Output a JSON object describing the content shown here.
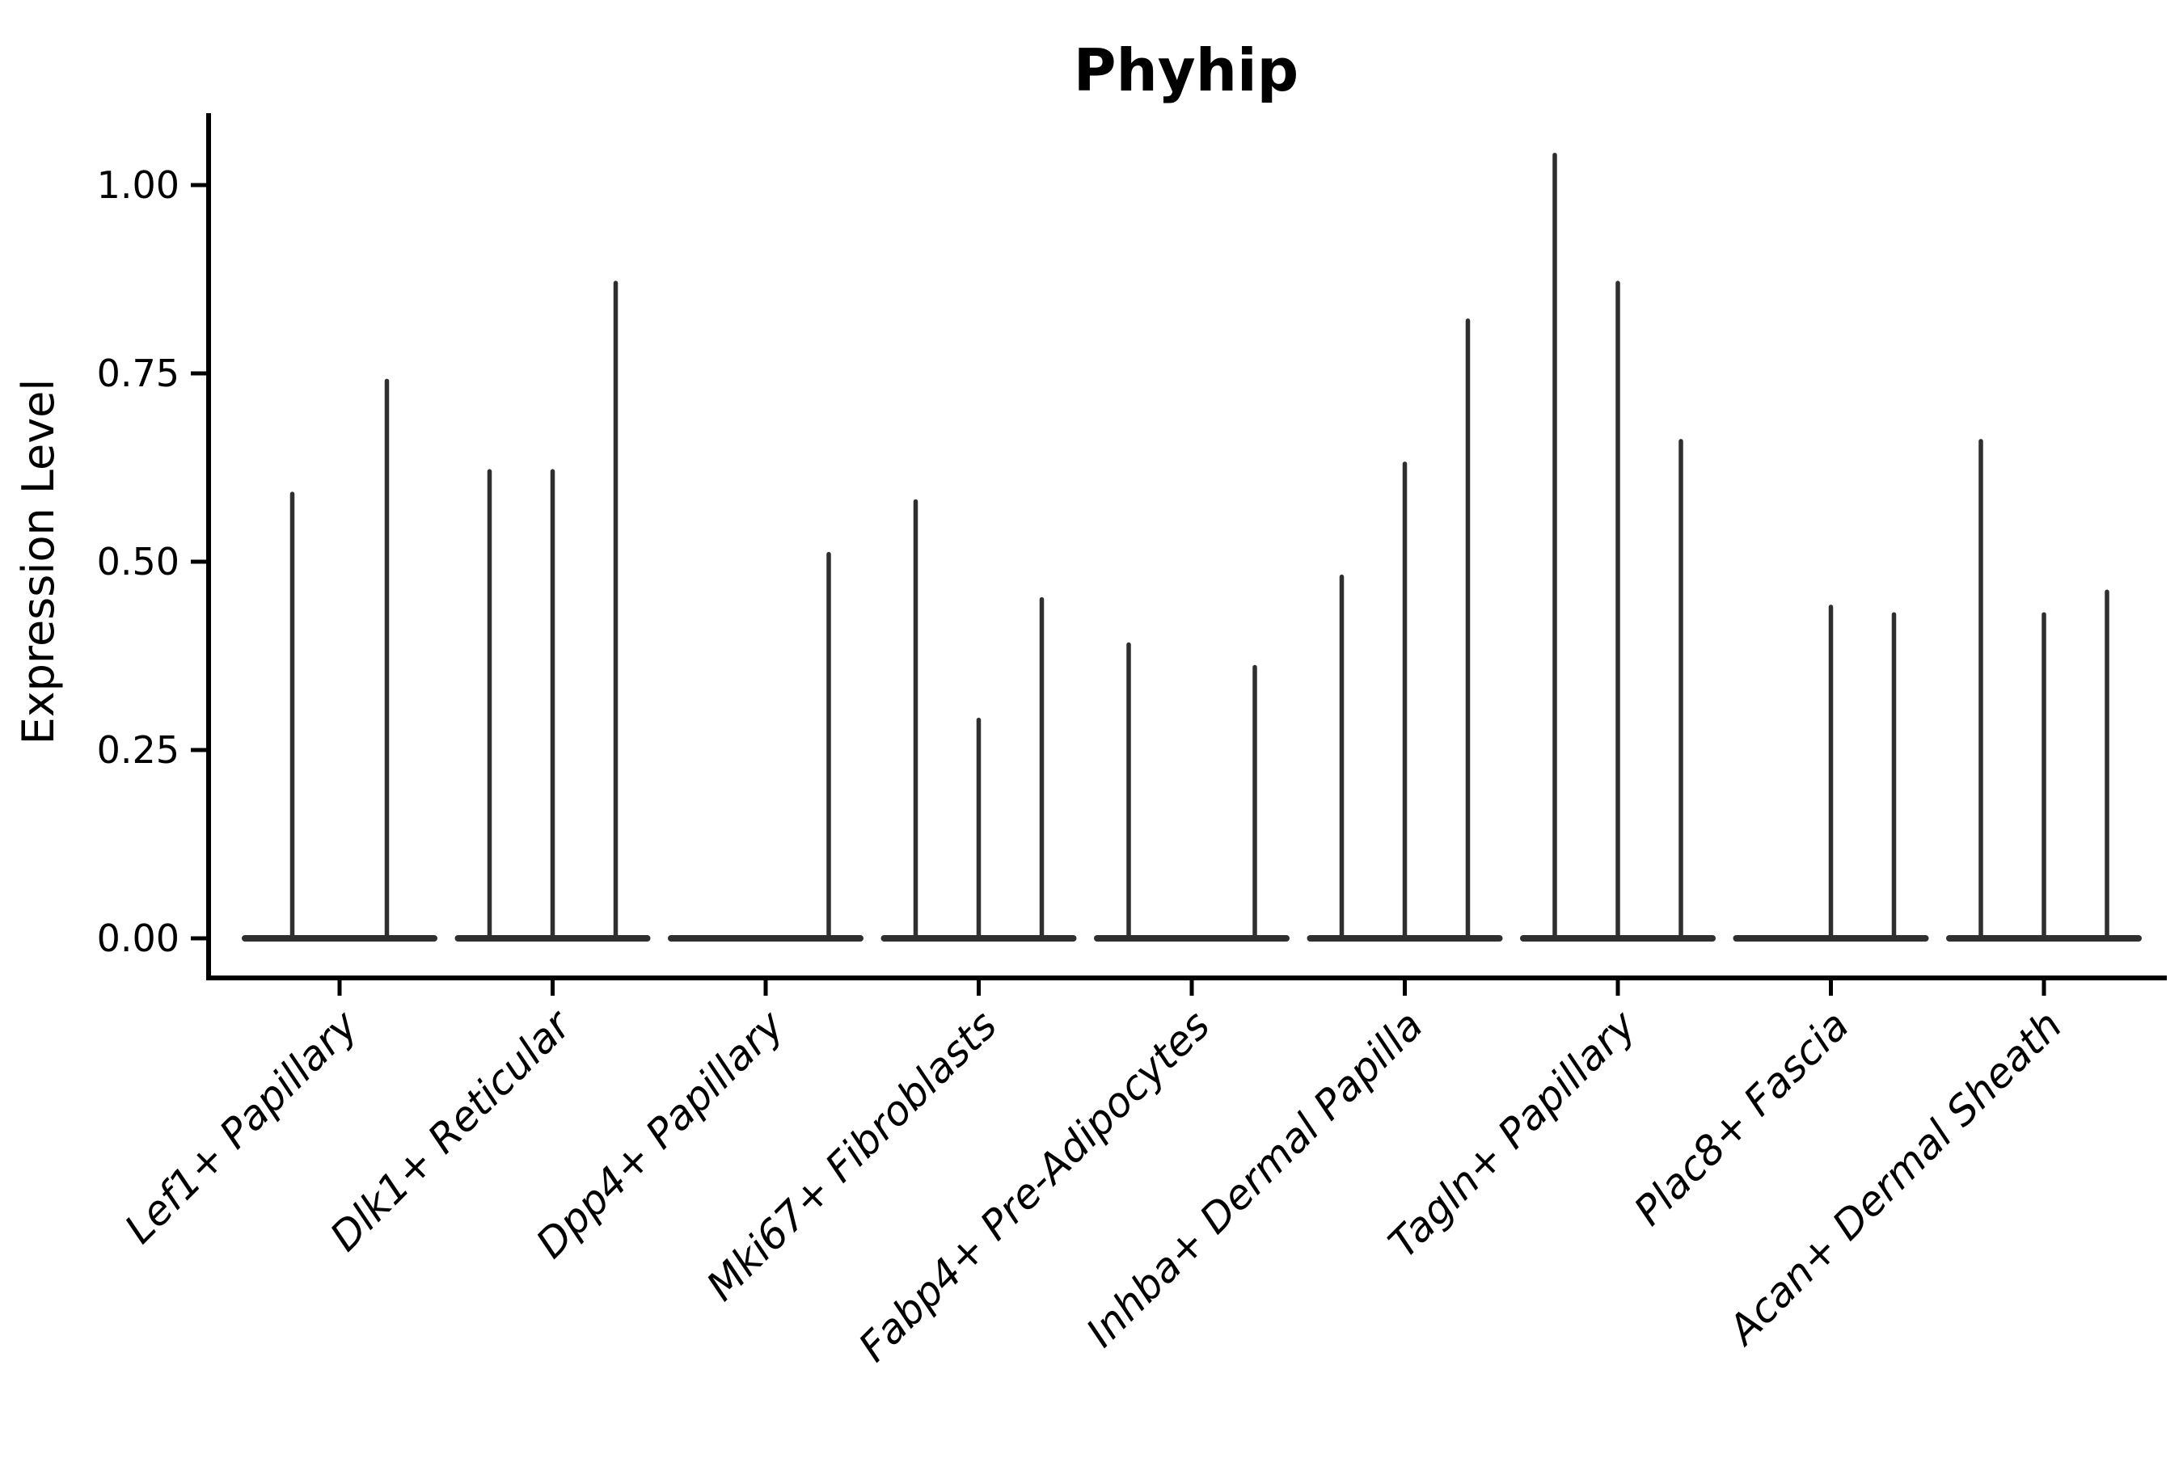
{
  "chart_data": {
    "type": "violin",
    "title": "Phyhip",
    "xlabel": "",
    "ylabel": "Expression Level",
    "ylim": [
      -0.05,
      1.1
    ],
    "yticks": [
      0.0,
      0.25,
      0.5,
      0.75,
      1.0
    ],
    "ytick_labels": [
      "0.00",
      "0.25",
      "0.50",
      "0.75",
      "1.00"
    ],
    "grid": false,
    "legend": "none",
    "description": "Stick-style violin plot of gene expression; each category shows 2-3 degenerate (line-like) violins sitting on a flat baseline at 0, value = max expression level of each violin spike (0 = flat violin, no spike)",
    "categories": [
      {
        "label": "Lef1+ Papillary",
        "violins": [
          0.59,
          0.74
        ]
      },
      {
        "label": "Dlk1+ Reticular",
        "violins": [
          0.62,
          0.62,
          0.87
        ]
      },
      {
        "label": "Dpp4+ Papillary",
        "violins": [
          0,
          0,
          0.51
        ]
      },
      {
        "label": "Mki67+ Fibroblasts",
        "violins": [
          0.58,
          0.29,
          0.45
        ]
      },
      {
        "label": "Fabp4+ Pre-Adipocytes",
        "violins": [
          0.39,
          0,
          0.36
        ]
      },
      {
        "label": "Inhba+ Dermal Papilla",
        "violins": [
          0.48,
          0.63,
          0.82
        ]
      },
      {
        "label": "Tagln+ Papillary",
        "violins": [
          1.04,
          0.87,
          0.66
        ]
      },
      {
        "label": "Plac8+ Fascia",
        "violins": [
          0,
          0.44,
          0.43
        ]
      },
      {
        "label": "Acan+ Dermal Sheath",
        "violins": [
          0.66,
          0.43,
          0.46
        ]
      }
    ],
    "colors": {
      "violin_stroke": "#2f2f2f",
      "axis": "#000000",
      "text": "#000000",
      "background": "#ffffff"
    }
  }
}
